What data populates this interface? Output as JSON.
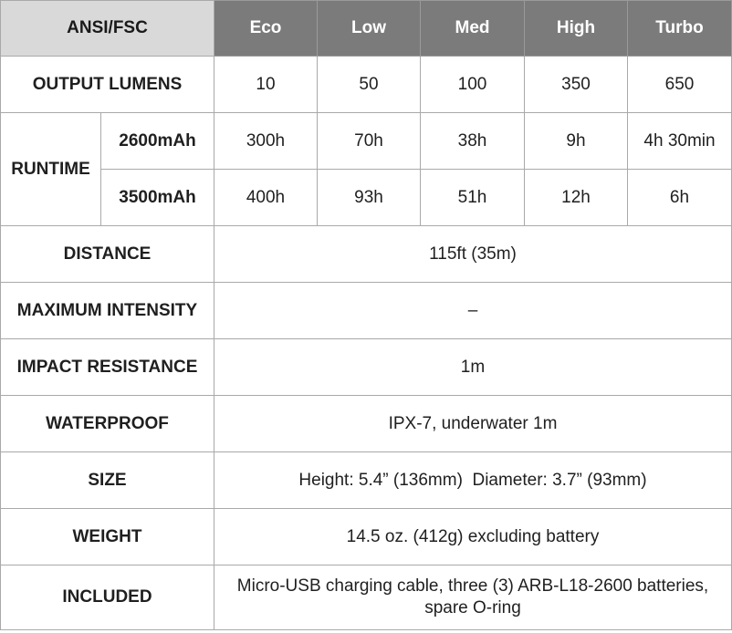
{
  "table": {
    "header": {
      "corner": "ANSI/FSC",
      "modes": [
        "Eco",
        "Low",
        "Med",
        "High",
        "Turbo"
      ]
    },
    "output_lumens": {
      "label": "OUTPUT LUMENS",
      "values": [
        "10",
        "50",
        "100",
        "350",
        "650"
      ]
    },
    "runtime": {
      "label": "RUNTIME",
      "rows": [
        {
          "battery": "2600mAh",
          "values": [
            "300h",
            "70h",
            "38h",
            "9h",
            "4h 30min"
          ]
        },
        {
          "battery": "3500mAh",
          "values": [
            "400h",
            "93h",
            "51h",
            "12h",
            "6h"
          ]
        }
      ]
    },
    "specs": [
      {
        "label": "DISTANCE",
        "value": "115ft (35m)"
      },
      {
        "label": "MAXIMUM INTENSITY",
        "value": "–"
      },
      {
        "label": "IMPACT RESISTANCE",
        "value": "1m"
      },
      {
        "label": "WATERPROOF",
        "value": "IPX-7, underwater 1m"
      },
      {
        "label": "SIZE",
        "value": "Height: 5.4” (136mm)  Diameter: 3.7” (93mm)"
      },
      {
        "label": "WEIGHT",
        "value": "14.5 oz. (412g) excluding battery"
      },
      {
        "label": "INCLUDED",
        "value": "Micro-USB charging cable, three (3) ARB-L18-2600 batteries,\nspare O-ring"
      }
    ]
  },
  "colors": {
    "corner_bg": "#d9d9d9",
    "header_bg": "#7b7b7b",
    "header_text": "#ffffff",
    "border": "#a9a9a9",
    "text": "#1f1f1f"
  }
}
